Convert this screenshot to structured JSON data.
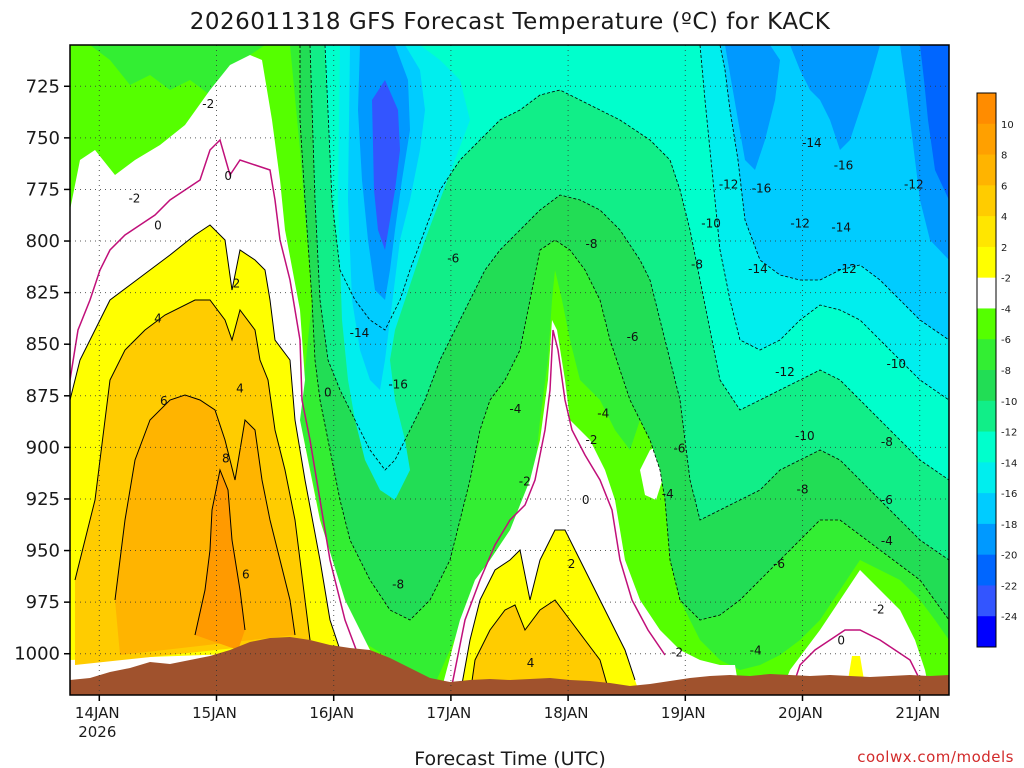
{
  "chart_data": {
    "type": "heatmap",
    "title": "2026011318 GFS Forecast Temperature (ºC) for KACK",
    "xlabel": "Forecast Time (UTC)",
    "ylabel": "",
    "credit": "coolwx.com/models",
    "y_axis": {
      "ticks": [
        725,
        750,
        775,
        800,
        825,
        850,
        875,
        900,
        925,
        950,
        975,
        1000
      ],
      "range": [
        1020,
        705
      ]
    },
    "x_axis": {
      "ticks": [
        {
          "label": "14JAN",
          "sub": "2026",
          "day": 14
        },
        {
          "label": "15JAN",
          "sub": "",
          "day": 15
        },
        {
          "label": "16JAN",
          "sub": "",
          "day": 16
        },
        {
          "label": "17JAN",
          "sub": "",
          "day": 17
        },
        {
          "label": "18JAN",
          "sub": "",
          "day": 18
        },
        {
          "label": "19JAN",
          "sub": "",
          "day": 19
        },
        {
          "label": "20JAN",
          "sub": "",
          "day": 20
        },
        {
          "label": "21JAN",
          "sub": "",
          "day": 21
        }
      ],
      "range": [
        13.75,
        21.25
      ]
    },
    "colorbar": {
      "labels": [
        "10",
        "8",
        "6",
        "4",
        "2",
        "-2",
        "-4",
        "-6",
        "-8",
        "-10",
        "-12",
        "-14",
        "-16",
        "-18",
        "-20",
        "-22",
        "-24"
      ],
      "colors": [
        "#ff8c00",
        "#ffa000",
        "#ffb400",
        "#ffcc00",
        "#ffe600",
        "#ffff00",
        "#ffffff",
        "#55ff00",
        "#33ee33",
        "#22dd55",
        "#11ee88",
        "#00ffcc",
        "#00eeee",
        "#00ccff",
        "#0099ff",
        "#0066ff",
        "#3355ff",
        "#0000ff"
      ]
    },
    "contour_labels": [
      {
        "text": "-2",
        "day": 14.93,
        "p": 733
      },
      {
        "text": "0",
        "day": 15.1,
        "p": 768
      },
      {
        "text": "-2",
        "day": 14.3,
        "p": 779
      },
      {
        "text": "0",
        "day": 14.5,
        "p": 792
      },
      {
        "text": "2",
        "day": 15.17,
        "p": 820
      },
      {
        "text": "4",
        "day": 14.5,
        "p": 837
      },
      {
        "text": "4",
        "day": 15.2,
        "p": 871
      },
      {
        "text": "6",
        "day": 14.55,
        "p": 877
      },
      {
        "text": "0",
        "day": 15.95,
        "p": 873
      },
      {
        "text": "8",
        "day": 15.08,
        "p": 905
      },
      {
        "text": "6",
        "day": 15.25,
        "p": 961
      },
      {
        "text": "-14",
        "day": 16.22,
        "p": 844
      },
      {
        "text": "-16",
        "day": 16.55,
        "p": 869
      },
      {
        "text": "-8",
        "day": 16.55,
        "p": 966
      },
      {
        "text": "-6",
        "day": 17.02,
        "p": 808
      },
      {
        "text": "-4",
        "day": 17.55,
        "p": 881
      },
      {
        "text": "-8",
        "day": 18.2,
        "p": 801
      },
      {
        "text": "-6",
        "day": 18.55,
        "p": 846
      },
      {
        "text": "-4",
        "day": 18.3,
        "p": 883
      },
      {
        "text": "-2",
        "day": 17.63,
        "p": 916
      },
      {
        "text": "-2",
        "day": 18.2,
        "p": 896
      },
      {
        "text": "0",
        "day": 18.15,
        "p": 925
      },
      {
        "text": "2",
        "day": 18.03,
        "p": 956
      },
      {
        "text": "4",
        "day": 17.68,
        "p": 1004
      },
      {
        "text": "-6",
        "day": 18.95,
        "p": 900
      },
      {
        "text": "-4",
        "day": 18.85,
        "p": 922
      },
      {
        "text": "-2",
        "day": 18.93,
        "p": 999
      },
      {
        "text": "-8",
        "day": 19.1,
        "p": 811
      },
      {
        "text": "-10",
        "day": 19.22,
        "p": 791
      },
      {
        "text": "-12",
        "day": 19.37,
        "p": 772
      },
      {
        "text": "-16",
        "day": 19.65,
        "p": 774
      },
      {
        "text": "-14",
        "day": 19.62,
        "p": 813
      },
      {
        "text": "-12",
        "day": 19.85,
        "p": 863
      },
      {
        "text": "-10",
        "day": 20.02,
        "p": 894
      },
      {
        "text": "-8",
        "day": 20.0,
        "p": 920
      },
      {
        "text": "-6",
        "day": 19.8,
        "p": 956
      },
      {
        "text": "-4",
        "day": 19.6,
        "p": 998
      },
      {
        "text": "-14",
        "day": 20.08,
        "p": 752
      },
      {
        "text": "-16",
        "day": 20.35,
        "p": 763
      },
      {
        "text": "-12",
        "day": 19.98,
        "p": 791
      },
      {
        "text": "-14",
        "day": 20.33,
        "p": 793
      },
      {
        "text": "-12",
        "day": 20.38,
        "p": 813
      },
      {
        "text": "-10",
        "day": 20.8,
        "p": 859
      },
      {
        "text": "-8",
        "day": 20.72,
        "p": 897
      },
      {
        "text": "-6",
        "day": 20.72,
        "p": 925
      },
      {
        "text": "-4",
        "day": 20.72,
        "p": 945
      },
      {
        "text": "-2",
        "day": 20.65,
        "p": 978
      },
      {
        "text": "0",
        "day": 20.33,
        "p": 993
      },
      {
        "text": "-12",
        "day": 20.95,
        "p": 772
      }
    ]
  }
}
